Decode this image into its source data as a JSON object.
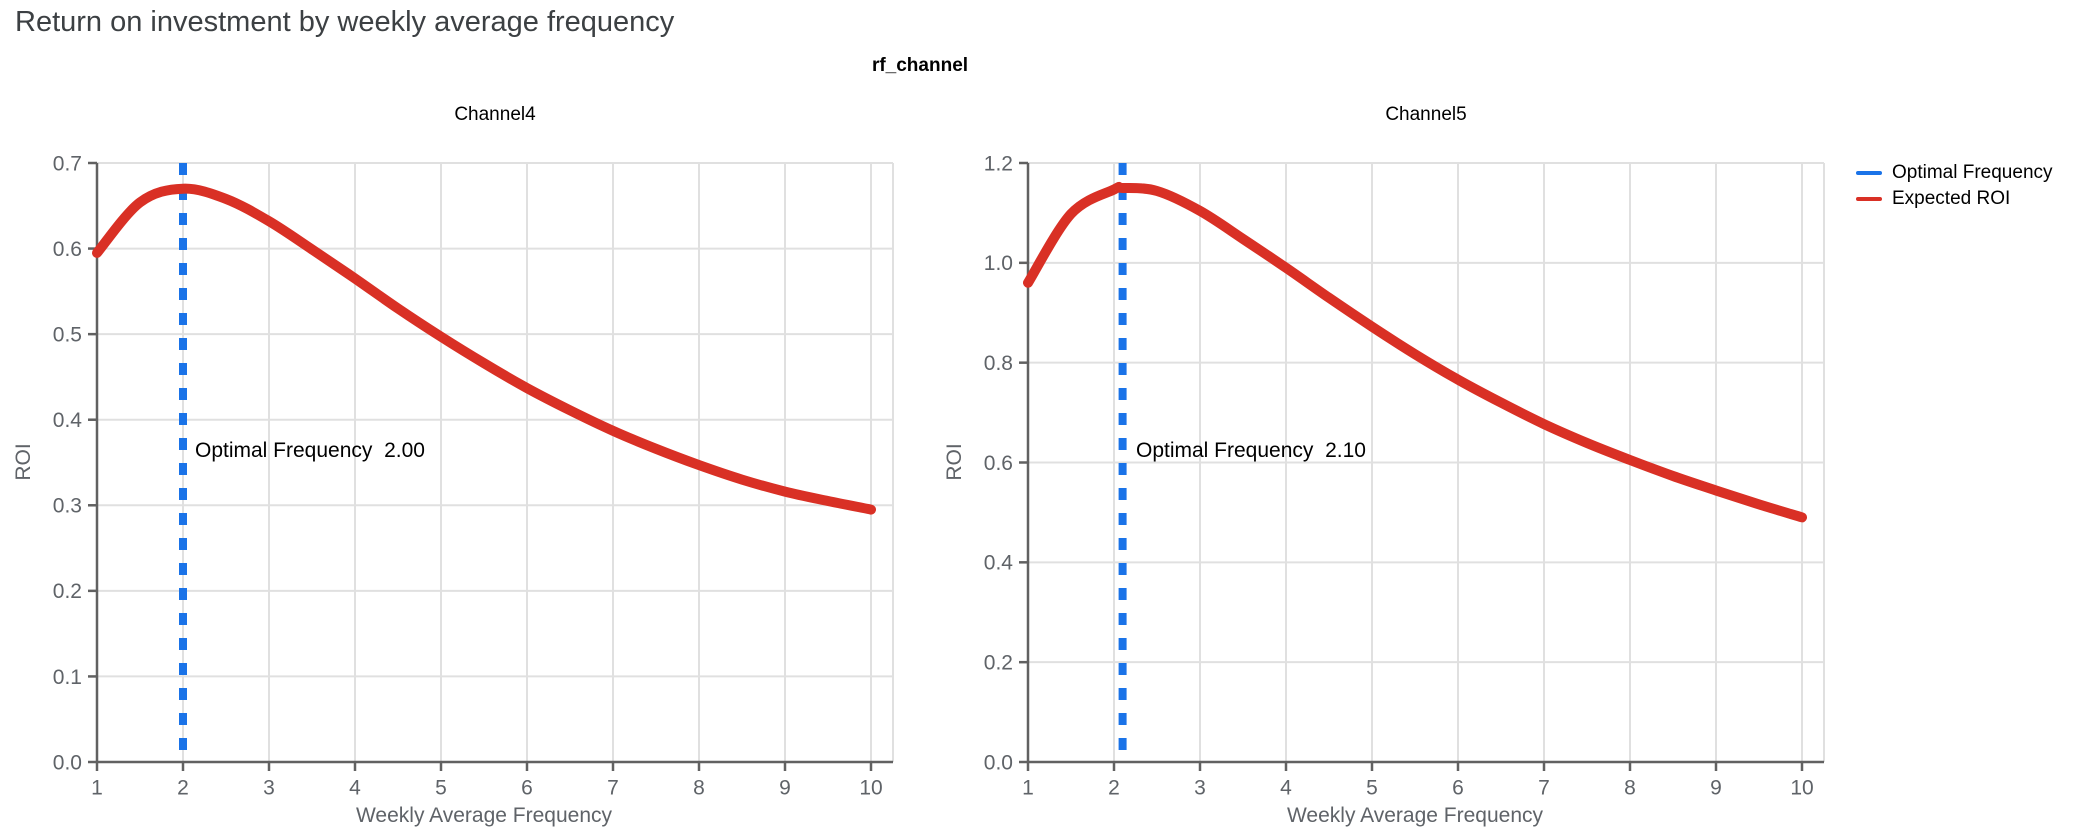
{
  "title": "Return on investment by weekly average frequency",
  "facet_title": "rf_channel",
  "legend": {
    "items": [
      {
        "label": "Optimal Frequency",
        "color": "#1a73e8"
      },
      {
        "label": "Expected ROI",
        "color": "#d93025"
      }
    ]
  },
  "colors": {
    "curve": "#d93025",
    "vline": "#1a73e8",
    "grid": "#e0e0e0",
    "axis": "#616161",
    "tick_label": "#5f6368",
    "title_text": "#3c4043"
  },
  "chart_data": [
    {
      "type": "line",
      "title": "Channel4",
      "xlabel": "Weekly Average Frequency",
      "ylabel": "ROI",
      "xticks": [
        1,
        2,
        3,
        4,
        5,
        6,
        7,
        8,
        9,
        10
      ],
      "yticks": [
        "0.0",
        "0.1",
        "0.2",
        "0.3",
        "0.4",
        "0.5",
        "0.6",
        "0.7"
      ],
      "xlim": [
        1,
        10
      ],
      "ylim": [
        0,
        0.7
      ],
      "grid": true,
      "optimal_frequency": 2.0,
      "annotation": "Optimal Frequency  2.00",
      "series": [
        {
          "name": "Expected ROI",
          "x": [
            1,
            1.5,
            2,
            2.5,
            3,
            3.5,
            4,
            4.5,
            5,
            5.5,
            6,
            6.5,
            7,
            7.5,
            8,
            8.5,
            9,
            9.5,
            10
          ],
          "y": [
            0.595,
            0.654,
            0.67,
            0.658,
            0.632,
            0.599,
            0.565,
            0.53,
            0.497,
            0.466,
            0.437,
            0.411,
            0.387,
            0.366,
            0.347,
            0.33,
            0.316,
            0.305,
            0.295
          ]
        }
      ]
    },
    {
      "type": "line",
      "title": "Channel5",
      "xlabel": "Weekly Average Frequency",
      "ylabel": "ROI",
      "xticks": [
        1,
        2,
        3,
        4,
        5,
        6,
        7,
        8,
        9,
        10
      ],
      "yticks": [
        "0.0",
        "0.2",
        "0.4",
        "0.6",
        "0.8",
        "1.0",
        "1.2"
      ],
      "xlim": [
        1,
        10
      ],
      "ylim": [
        0,
        1.2
      ],
      "grid": true,
      "optimal_frequency": 2.1,
      "annotation": "Optimal Frequency  2.10",
      "series": [
        {
          "name": "Expected ROI",
          "x": [
            1,
            1.5,
            2,
            2.1,
            2.5,
            3,
            3.5,
            4,
            4.5,
            5,
            5.5,
            6,
            6.5,
            7,
            7.5,
            8,
            8.5,
            9,
            9.5,
            10
          ],
          "y": [
            0.96,
            1.098,
            1.147,
            1.15,
            1.144,
            1.104,
            1.048,
            0.99,
            0.93,
            0.872,
            0.817,
            0.766,
            0.72,
            0.677,
            0.639,
            0.605,
            0.573,
            0.544,
            0.516,
            0.49
          ]
        }
      ]
    }
  ]
}
